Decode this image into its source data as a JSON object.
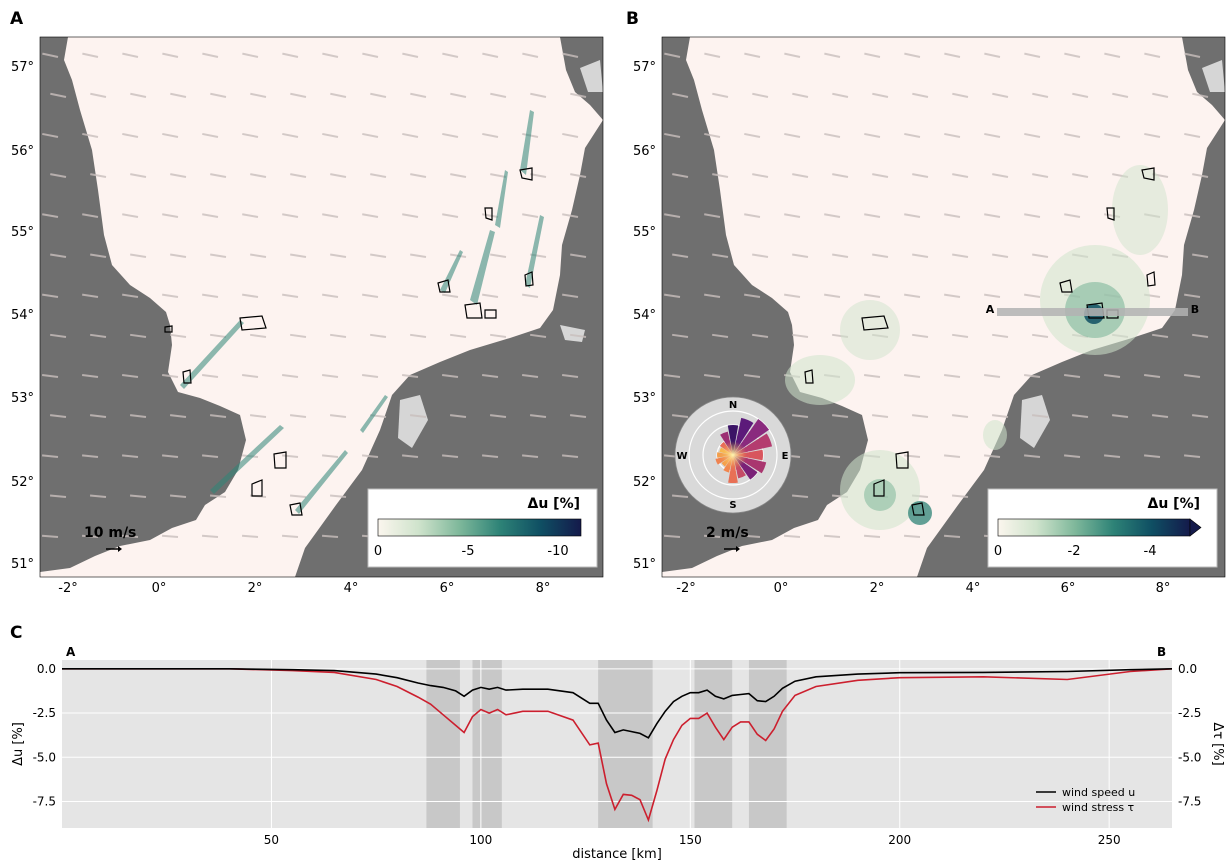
{
  "panels": {
    "a": {
      "label": "A",
      "lat_ticks": [
        "57°",
        "56°",
        "55°",
        "54°",
        "53°",
        "52°",
        "51°"
      ],
      "lon_ticks": [
        "-2°",
        "0°",
        "2°",
        "4°",
        "6°",
        "8°"
      ],
      "scale_label": "10 m/s",
      "colorbar": {
        "title": "Δu [%]",
        "ticks": [
          "0",
          "-5",
          "-10"
        ],
        "colors": [
          "#fbf6ee",
          "#cfe3cc",
          "#7fb89b",
          "#2e8377",
          "#0f4f63",
          "#141a4b"
        ]
      }
    },
    "b": {
      "label": "B",
      "lat_ticks": [
        "57°",
        "56°",
        "55°",
        "54°",
        "53°",
        "52°",
        "51°"
      ],
      "lon_ticks": [
        "-2°",
        "0°",
        "2°",
        "4°",
        "6°",
        "8°"
      ],
      "scale_label": "2 m/s",
      "section_start": "A",
      "section_end": "B",
      "compass": [
        "N",
        "E",
        "S",
        "W"
      ],
      "colorbar": {
        "title": "Δu [%]",
        "ticks": [
          "0",
          "-2",
          "-4"
        ],
        "colors": [
          "#fbf6ee",
          "#cfe3cc",
          "#7fb89b",
          "#2e8377",
          "#0f4f63",
          "#141a4b"
        ]
      }
    },
    "c": {
      "label": "C",
      "start_label": "A",
      "end_label": "B"
    }
  },
  "chart_data": {
    "type": "line",
    "xlabel": "distance [km]",
    "ylabel": "Δu [%]",
    "ylabel_right": "Δτ [%]",
    "xlim": [
      0,
      265
    ],
    "ylim": [
      -9.0,
      0.5
    ],
    "x_ticks": [
      50,
      100,
      150,
      200,
      250
    ],
    "y_ticks": [
      0.0,
      -2.5,
      -5.0,
      -7.5
    ],
    "x_tick_labels": [
      "50",
      "100",
      "150",
      "200",
      "250"
    ],
    "y_tick_labels": [
      "0.0",
      "-2.5",
      "-5.0",
      "-7.5"
    ],
    "grid": true,
    "legend": "bottom-right",
    "shaded_bands": [
      [
        87,
        95
      ],
      [
        98,
        105
      ],
      [
        128,
        141
      ],
      [
        151,
        160
      ],
      [
        164,
        173
      ]
    ],
    "series": [
      {
        "name": "wind speed u",
        "color": "#000000",
        "x": [
          0,
          40,
          55,
          65,
          75,
          80,
          85,
          88,
          91,
          94,
          96,
          98,
          100,
          102,
          104,
          106,
          110,
          116,
          122,
          126,
          128,
          130,
          132,
          134,
          136,
          138,
          140,
          142,
          144,
          146,
          148,
          150,
          152,
          154,
          156,
          158,
          160,
          162,
          164,
          166,
          168,
          170,
          172,
          175,
          180,
          190,
          200,
          220,
          240,
          255,
          265
        ],
        "y": [
          0,
          0,
          -0.05,
          -0.1,
          -0.3,
          -0.5,
          -0.8,
          -0.95,
          -1.05,
          -1.25,
          -1.55,
          -1.2,
          -1.05,
          -1.15,
          -1.05,
          -1.2,
          -1.15,
          -1.15,
          -1.35,
          -1.95,
          -1.95,
          -2.9,
          -3.6,
          -3.45,
          -3.55,
          -3.65,
          -3.9,
          -3.1,
          -2.4,
          -1.85,
          -1.55,
          -1.35,
          -1.35,
          -1.2,
          -1.55,
          -1.7,
          -1.5,
          -1.45,
          -1.4,
          -1.8,
          -1.85,
          -1.55,
          -1.1,
          -0.7,
          -0.45,
          -0.3,
          -0.22,
          -0.2,
          -0.15,
          -0.05,
          0
        ]
      },
      {
        "name": "wind stress τ",
        "color": "#cc1f2e",
        "x": [
          0,
          40,
          55,
          65,
          75,
          80,
          85,
          88,
          91,
          94,
          96,
          98,
          100,
          102,
          104,
          106,
          110,
          116,
          122,
          126,
          128,
          130,
          132,
          134,
          136,
          138,
          140,
          142,
          144,
          146,
          148,
          150,
          152,
          154,
          156,
          158,
          160,
          162,
          164,
          166,
          168,
          170,
          172,
          175,
          180,
          190,
          200,
          220,
          240,
          255,
          265
        ],
        "y": [
          0,
          0,
          -0.1,
          -0.2,
          -0.6,
          -1.0,
          -1.6,
          -2.0,
          -2.6,
          -3.2,
          -3.6,
          -2.7,
          -2.3,
          -2.5,
          -2.3,
          -2.6,
          -2.4,
          -2.4,
          -2.9,
          -4.3,
          -4.2,
          -6.5,
          -7.95,
          -7.1,
          -7.15,
          -7.4,
          -8.55,
          -6.9,
          -5.1,
          -4.0,
          -3.2,
          -2.8,
          -2.8,
          -2.5,
          -3.3,
          -4.0,
          -3.3,
          -3.0,
          -3.0,
          -3.7,
          -4.05,
          -3.4,
          -2.4,
          -1.5,
          -1.0,
          -0.65,
          -0.5,
          -0.45,
          -0.6,
          -0.15,
          0
        ]
      }
    ]
  }
}
